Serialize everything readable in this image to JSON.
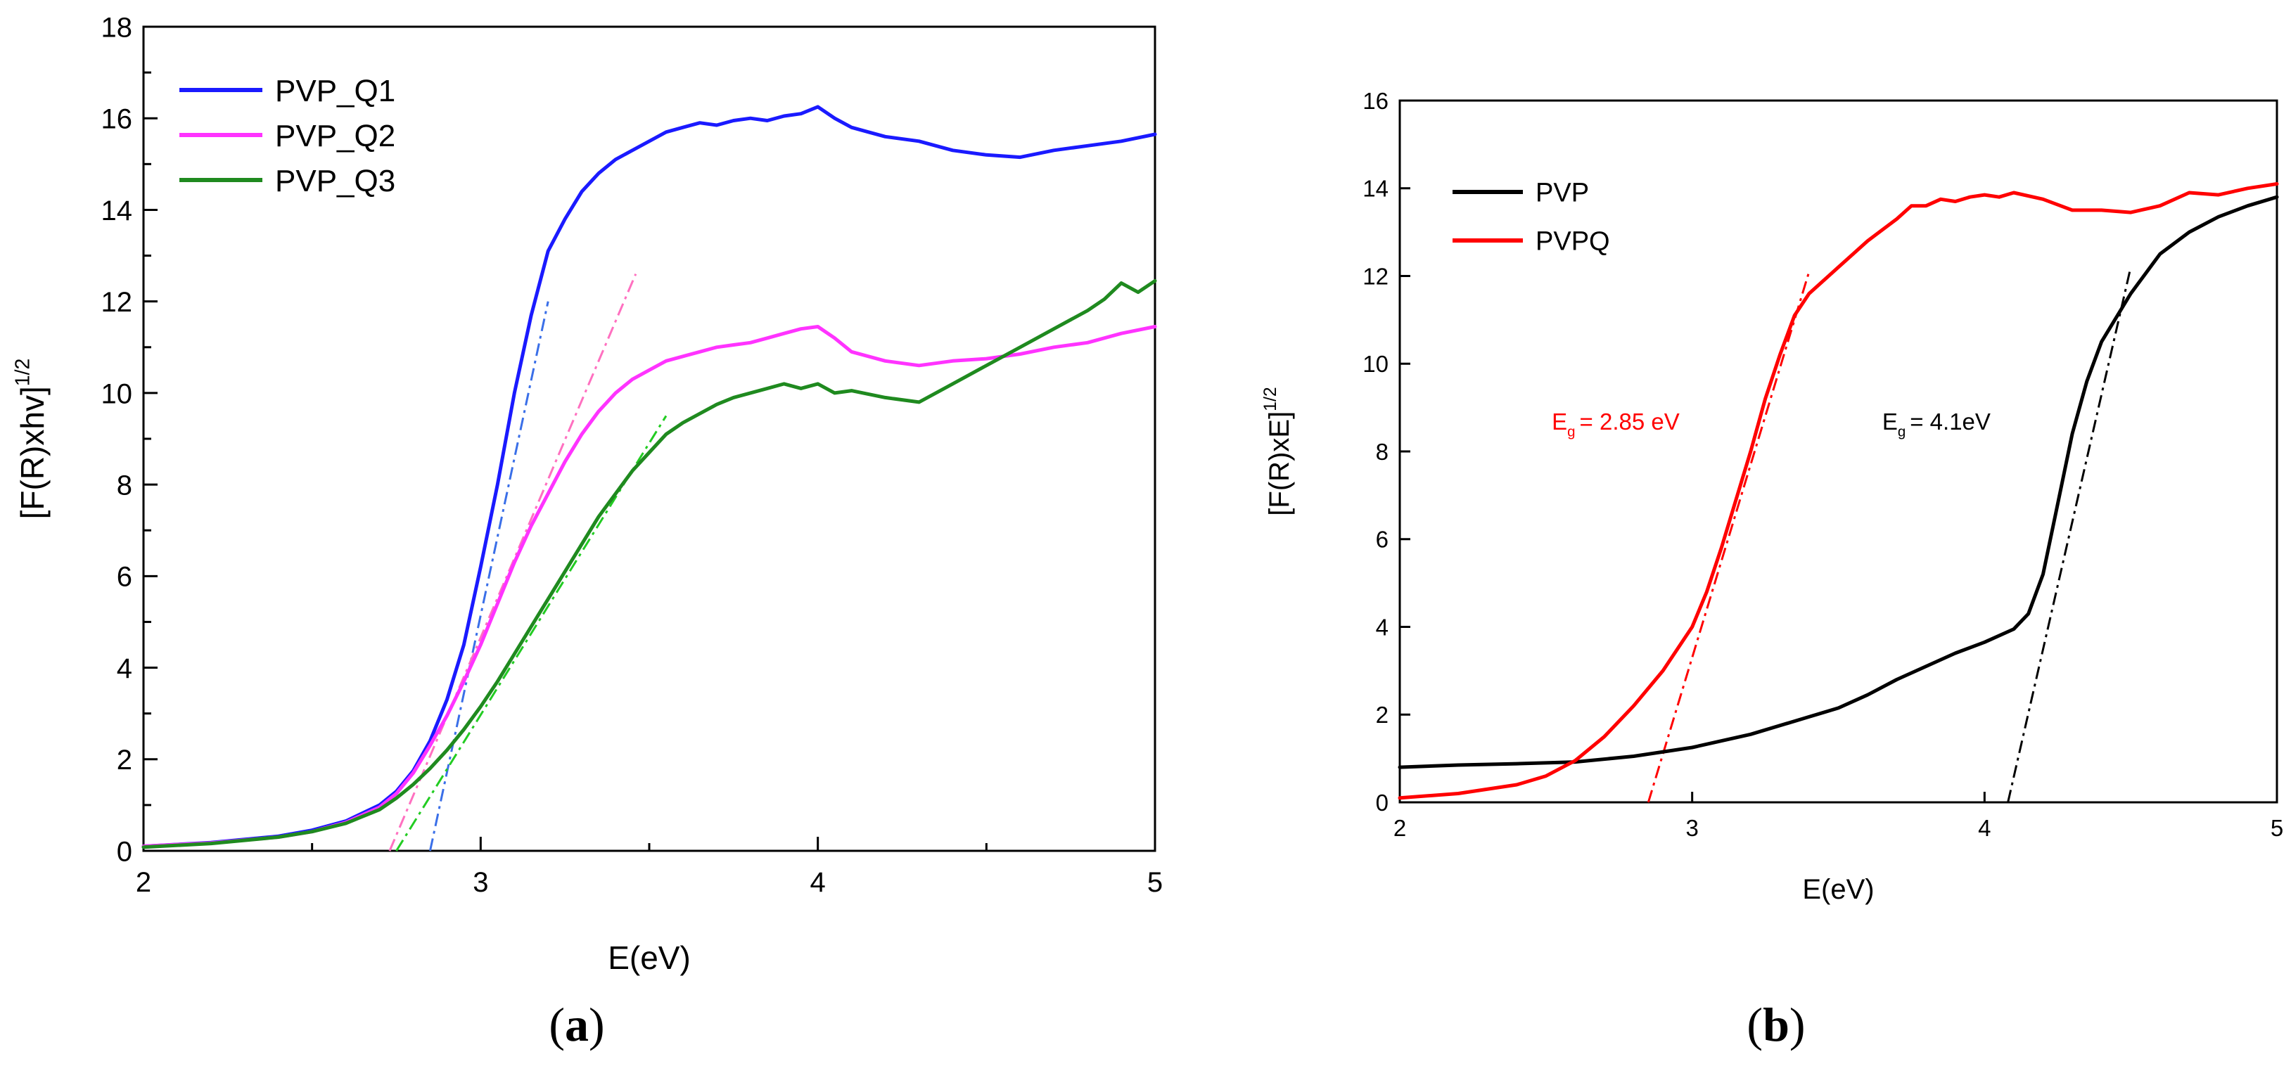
{
  "chart_data": [
    {
      "panel": "a",
      "type": "line",
      "caption_letter": "a",
      "xlabel": "E(eV)",
      "ylabel_main": "[F(R)xhv]",
      "ylabel_sup": "1/2",
      "xlim": [
        2,
        5
      ],
      "ylim": [
        0,
        18
      ],
      "xticks": [
        "2",
        "3",
        "4",
        "5"
      ],
      "yticks": [
        "0",
        "2",
        "4",
        "6",
        "8",
        "10",
        "12",
        "14",
        "16",
        "18"
      ],
      "legend_position": "top-left",
      "series": [
        {
          "name": "PVP_Q1",
          "color": "#1a1aff",
          "x": [
            2.0,
            2.2,
            2.4,
            2.5,
            2.6,
            2.7,
            2.75,
            2.8,
            2.85,
            2.9,
            2.95,
            3.0,
            3.05,
            3.1,
            3.15,
            3.2,
            3.25,
            3.3,
            3.35,
            3.4,
            3.45,
            3.5,
            3.55,
            3.6,
            3.65,
            3.7,
            3.75,
            3.8,
            3.85,
            3.9,
            3.95,
            4.0,
            4.05,
            4.1,
            4.15,
            4.2,
            4.3,
            4.4,
            4.5,
            4.6,
            4.7,
            4.8,
            4.9,
            5.0
          ],
          "y": [
            0.1,
            0.18,
            0.32,
            0.45,
            0.65,
            1.0,
            1.3,
            1.75,
            2.4,
            3.3,
            4.5,
            6.2,
            8.0,
            10.0,
            11.7,
            13.1,
            13.8,
            14.4,
            14.8,
            15.1,
            15.3,
            15.5,
            15.7,
            15.8,
            15.9,
            15.85,
            15.95,
            16.0,
            15.95,
            16.05,
            16.1,
            16.25,
            16.0,
            15.8,
            15.7,
            15.6,
            15.5,
            15.3,
            15.2,
            15.15,
            15.3,
            15.4,
            15.5,
            15.65
          ]
        },
        {
          "name": "PVP_Q2",
          "color": "#ff33ff",
          "x": [
            2.0,
            2.2,
            2.4,
            2.5,
            2.6,
            2.7,
            2.75,
            2.8,
            2.85,
            2.9,
            2.95,
            3.0,
            3.05,
            3.1,
            3.15,
            3.2,
            3.25,
            3.3,
            3.35,
            3.4,
            3.45,
            3.5,
            3.55,
            3.6,
            3.65,
            3.7,
            3.75,
            3.8,
            3.85,
            3.9,
            3.95,
            4.0,
            4.05,
            4.1,
            4.2,
            4.3,
            4.4,
            4.5,
            4.6,
            4.7,
            4.8,
            4.9,
            5.0
          ],
          "y": [
            0.1,
            0.17,
            0.3,
            0.42,
            0.62,
            0.95,
            1.25,
            1.7,
            2.3,
            2.95,
            3.7,
            4.5,
            5.4,
            6.3,
            7.1,
            7.8,
            8.5,
            9.1,
            9.6,
            10.0,
            10.3,
            10.5,
            10.7,
            10.8,
            10.9,
            11.0,
            11.05,
            11.1,
            11.2,
            11.3,
            11.4,
            11.45,
            11.2,
            10.9,
            10.7,
            10.6,
            10.7,
            10.75,
            10.85,
            11.0,
            11.1,
            11.3,
            11.45
          ]
        },
        {
          "name": "PVP_Q3",
          "color": "#1f8a1f",
          "x": [
            2.0,
            2.2,
            2.4,
            2.5,
            2.6,
            2.7,
            2.75,
            2.8,
            2.85,
            2.9,
            2.95,
            3.0,
            3.05,
            3.1,
            3.15,
            3.2,
            3.25,
            3.3,
            3.35,
            3.4,
            3.45,
            3.5,
            3.55,
            3.6,
            3.65,
            3.7,
            3.75,
            3.8,
            3.85,
            3.9,
            3.95,
            4.0,
            4.05,
            4.1,
            4.2,
            4.3,
            4.4,
            4.5,
            4.6,
            4.7,
            4.8,
            4.85,
            4.9,
            4.95,
            5.0
          ],
          "y": [
            0.08,
            0.16,
            0.3,
            0.42,
            0.6,
            0.9,
            1.15,
            1.45,
            1.8,
            2.2,
            2.65,
            3.15,
            3.7,
            4.3,
            4.9,
            5.5,
            6.1,
            6.7,
            7.3,
            7.8,
            8.3,
            8.7,
            9.1,
            9.35,
            9.55,
            9.75,
            9.9,
            10.0,
            10.1,
            10.2,
            10.1,
            10.2,
            10.0,
            10.05,
            9.9,
            9.8,
            10.2,
            10.6,
            11.0,
            11.4,
            11.8,
            12.05,
            12.4,
            12.2,
            12.45
          ]
        }
      ],
      "tangents": [
        {
          "series": "PVP_Q1",
          "color": "#3a6fe8",
          "x": [
            2.85,
            3.2
          ],
          "y": [
            0.0,
            12.0
          ]
        },
        {
          "series": "PVP_Q2",
          "color": "#ff70c0",
          "x": [
            2.73,
            3.46
          ],
          "y": [
            0.0,
            12.6
          ]
        },
        {
          "series": "PVP_Q3",
          "color": "#22cc22",
          "x": [
            2.75,
            3.55
          ],
          "y": [
            0.0,
            9.5
          ]
        }
      ]
    },
    {
      "panel": "b",
      "type": "line",
      "caption_letter": "b",
      "xlabel": "E(eV)",
      "ylabel_main": "[F(R)xE]",
      "ylabel_sup": "1/2",
      "xlim": [
        2,
        5
      ],
      "ylim": [
        0,
        16
      ],
      "xticks": [
        "2",
        "3",
        "4",
        "5"
      ],
      "yticks": [
        "0",
        "2",
        "4",
        "6",
        "8",
        "10",
        "12",
        "14",
        "16"
      ],
      "legend_position": "top-left",
      "series": [
        {
          "name": "PVP",
          "color": "#000000",
          "x": [
            2.0,
            2.2,
            2.4,
            2.6,
            2.8,
            3.0,
            3.2,
            3.4,
            3.5,
            3.6,
            3.7,
            3.8,
            3.9,
            4.0,
            4.1,
            4.15,
            4.2,
            4.25,
            4.3,
            4.35,
            4.4,
            4.5,
            4.6,
            4.7,
            4.8,
            4.9,
            5.0
          ],
          "y": [
            0.8,
            0.85,
            0.88,
            0.92,
            1.05,
            1.25,
            1.55,
            1.95,
            2.15,
            2.45,
            2.8,
            3.1,
            3.4,
            3.65,
            3.95,
            4.3,
            5.2,
            6.8,
            8.4,
            9.6,
            10.5,
            11.6,
            12.5,
            13.0,
            13.35,
            13.6,
            13.8
          ]
        },
        {
          "name": "PVPQ",
          "color": "#ff0000",
          "x": [
            2.0,
            2.2,
            2.4,
            2.5,
            2.6,
            2.7,
            2.8,
            2.9,
            3.0,
            3.05,
            3.1,
            3.15,
            3.2,
            3.25,
            3.3,
            3.35,
            3.4,
            3.5,
            3.6,
            3.7,
            3.75,
            3.8,
            3.85,
            3.9,
            3.95,
            4.0,
            4.05,
            4.1,
            4.2,
            4.3,
            4.4,
            4.5,
            4.6,
            4.7,
            4.8,
            4.9,
            5.0
          ],
          "y": [
            0.1,
            0.2,
            0.4,
            0.6,
            0.95,
            1.5,
            2.2,
            3.0,
            4.0,
            4.8,
            5.8,
            6.9,
            8.0,
            9.2,
            10.2,
            11.1,
            11.6,
            12.2,
            12.8,
            13.3,
            13.6,
            13.6,
            13.75,
            13.7,
            13.8,
            13.85,
            13.8,
            13.9,
            13.75,
            13.5,
            13.5,
            13.45,
            13.6,
            13.9,
            13.85,
            14.0,
            14.1
          ]
        }
      ],
      "tangents": [
        {
          "series": "PVPQ",
          "color": "#ff0000",
          "x": [
            2.85,
            3.4
          ],
          "y": [
            0.0,
            12.1
          ]
        },
        {
          "series": "PVP",
          "color": "#000000",
          "x": [
            4.08,
            4.5
          ],
          "y": [
            0.0,
            12.2
          ]
        }
      ],
      "annotations": [
        {
          "id": "eg_pvpq",
          "main": "E",
          "sub": "g",
          "rest": "= 2.85 eV",
          "color": "#ff0000",
          "x": 2.52,
          "y": 8.5
        },
        {
          "id": "eg_pvp",
          "main": "E",
          "sub": "g",
          "rest": "= 4.1eV",
          "color": "#000000",
          "x": 3.65,
          "y": 8.5
        }
      ]
    }
  ]
}
